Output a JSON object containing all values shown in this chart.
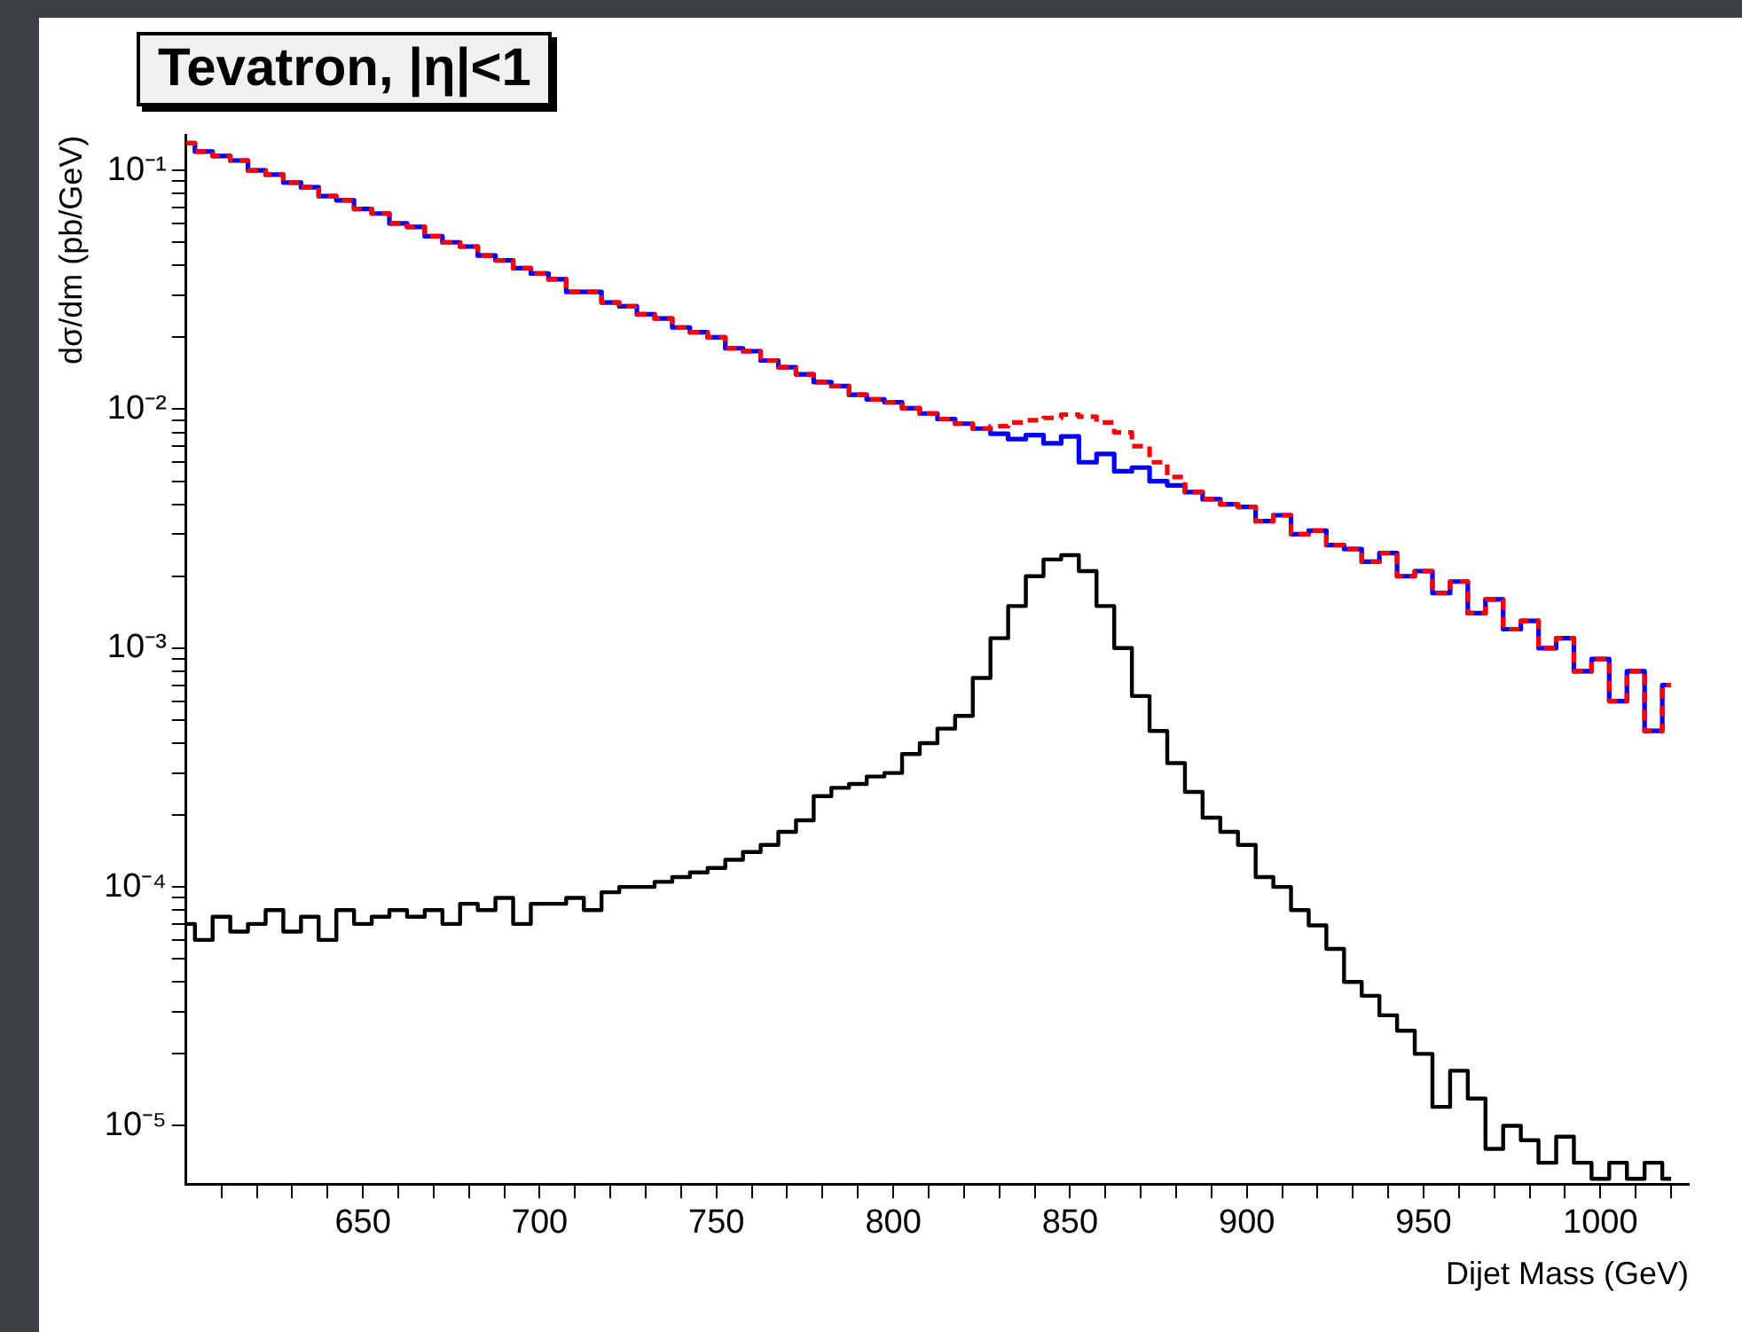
{
  "chart_data": {
    "type": "step",
    "title": "Tevatron, |η|<1",
    "xlabel": "Dijet Mass (GeV)",
    "ylabel": "dσ/dm (pb/GeV)",
    "log": "y",
    "grid": false,
    "legend": false,
    "marker": "none",
    "x": [
      600,
      605,
      610,
      615,
      620,
      625,
      630,
      635,
      640,
      645,
      650,
      655,
      660,
      665,
      670,
      675,
      680,
      685,
      690,
      695,
      700,
      705,
      710,
      715,
      720,
      725,
      730,
      735,
      740,
      745,
      750,
      755,
      760,
      765,
      770,
      775,
      780,
      785,
      790,
      795,
      800,
      805,
      810,
      815,
      820,
      825,
      830,
      835,
      840,
      845,
      850,
      855,
      860,
      865,
      870,
      875,
      880,
      885,
      890,
      895,
      900,
      905,
      910,
      915,
      920,
      925,
      930,
      935,
      940,
      945,
      950,
      955,
      960,
      965,
      970,
      975,
      980,
      985,
      990,
      995,
      1000,
      1005,
      1010,
      1015,
      1020
    ],
    "xlim": [
      600,
      1025
    ],
    "xticks": [
      {
        "value": 610,
        "label": null
      },
      {
        "value": 620,
        "label": null
      },
      {
        "value": 630,
        "label": null
      },
      {
        "value": 640,
        "label": null
      },
      650,
      {
        "value": 660,
        "label": null
      },
      {
        "value": 670,
        "label": null
      },
      {
        "value": 680,
        "label": null
      },
      {
        "value": 690,
        "label": null
      },
      700,
      {
        "value": 710,
        "label": null
      },
      {
        "value": 720,
        "label": null
      },
      {
        "value": 730,
        "label": null
      },
      {
        "value": 740,
        "label": null
      },
      750,
      {
        "value": 760,
        "label": null
      },
      {
        "value": 770,
        "label": null
      },
      {
        "value": 780,
        "label": null
      },
      {
        "value": 790,
        "label": null
      },
      800,
      {
        "value": 810,
        "label": null
      },
      {
        "value": 820,
        "label": null
      },
      {
        "value": 830,
        "label": null
      },
      {
        "value": 840,
        "label": null
      },
      850,
      {
        "value": 860,
        "label": null
      },
      {
        "value": 870,
        "label": null
      },
      {
        "value": 880,
        "label": null
      },
      {
        "value": 890,
        "label": null
      },
      900,
      {
        "value": 910,
        "label": null
      },
      {
        "value": 920,
        "label": null
      },
      {
        "value": 930,
        "label": null
      },
      {
        "value": 940,
        "label": null
      },
      950,
      {
        "value": 960,
        "label": null
      },
      {
        "value": 970,
        "label": null
      },
      {
        "value": 980,
        "label": null
      },
      {
        "value": 990,
        "label": null
      },
      1000,
      {
        "value": 1010,
        "label": null
      },
      {
        "value": 1020,
        "label": null
      }
    ],
    "ylim": [
      5.7e-06,
      0.14
    ],
    "yticks": [
      {
        "value": 1e-05,
        "label": "10⁻⁵"
      },
      {
        "value": 2e-05,
        "label": null
      },
      {
        "value": 3e-05,
        "label": null
      },
      {
        "value": 4e-05,
        "label": null
      },
      {
        "value": 5e-05,
        "label": null
      },
      {
        "value": 6e-05,
        "label": null
      },
      {
        "value": 7e-05,
        "label": null
      },
      {
        "value": 8e-05,
        "label": null
      },
      {
        "value": 9e-05,
        "label": null
      },
      {
        "value": 0.0001,
        "label": "10⁻⁴"
      },
      {
        "value": 0.0002,
        "label": null
      },
      {
        "value": 0.0003,
        "label": null
      },
      {
        "value": 0.0004,
        "label": null
      },
      {
        "value": 0.0005,
        "label": null
      },
      {
        "value": 0.0006,
        "label": null
      },
      {
        "value": 0.0007,
        "label": null
      },
      {
        "value": 0.0008,
        "label": null
      },
      {
        "value": 0.0009,
        "label": null
      },
      {
        "value": 0.001,
        "label": "10⁻³"
      },
      {
        "value": 0.002,
        "label": null
      },
      {
        "value": 0.003,
        "label": null
      },
      {
        "value": 0.004,
        "label": null
      },
      {
        "value": 0.005,
        "label": null
      },
      {
        "value": 0.006,
        "label": null
      },
      {
        "value": 0.007,
        "label": null
      },
      {
        "value": 0.008,
        "label": null
      },
      {
        "value": 0.009,
        "label": null
      },
      {
        "value": 0.01,
        "label": "10⁻²"
      },
      {
        "value": 0.02,
        "label": null
      },
      {
        "value": 0.03,
        "label": null
      },
      {
        "value": 0.04,
        "label": null
      },
      {
        "value": 0.05,
        "label": null
      },
      {
        "value": 0.06,
        "label": null
      },
      {
        "value": 0.07,
        "label": null
      },
      {
        "value": 0.08,
        "label": null
      },
      {
        "value": 0.09,
        "label": null
      },
      {
        "value": 0.1,
        "label": "10⁻¹"
      }
    ],
    "series": [
      {
        "color": "#0000ff",
        "line_style": "solid",
        "values": [
          0.13,
          0.12,
          0.115,
          0.11,
          0.1,
          0.096,
          0.089,
          0.085,
          0.078,
          0.075,
          0.069,
          0.066,
          0.06,
          0.058,
          0.053,
          0.05,
          0.048,
          0.044,
          0.042,
          0.039,
          0.037,
          0.035,
          0.031,
          0.031,
          0.028,
          0.027,
          0.025,
          0.024,
          0.022,
          0.021,
          0.02,
          0.018,
          0.0175,
          0.016,
          0.015,
          0.014,
          0.013,
          0.0125,
          0.0115,
          0.011,
          0.0107,
          0.0101,
          0.0096,
          0.0091,
          0.0087,
          0.0083,
          0.0079,
          0.0075,
          0.0078,
          0.0072,
          0.0077,
          0.006,
          0.0065,
          0.0055,
          0.0057,
          0.005,
          0.0048,
          0.0045,
          0.0042,
          0.004,
          0.0039,
          0.0034,
          0.0036,
          0.003,
          0.0031,
          0.0027,
          0.0026,
          0.0023,
          0.0025,
          0.002,
          0.0021,
          0.0017,
          0.0019,
          0.0014,
          0.0016,
          0.0012,
          0.0013,
          0.001,
          0.0011,
          0.0008,
          0.0009,
          0.0006,
          0.0008,
          0.00045,
          0.0007
        ]
      },
      {
        "color": "#ff0000",
        "line_style": "dashed",
        "values": [
          0.13,
          0.12,
          0.115,
          0.11,
          0.1,
          0.096,
          0.089,
          0.085,
          0.078,
          0.075,
          0.069,
          0.066,
          0.06,
          0.058,
          0.053,
          0.05,
          0.048,
          0.044,
          0.042,
          0.039,
          0.037,
          0.035,
          0.031,
          0.031,
          0.028,
          0.027,
          0.025,
          0.024,
          0.022,
          0.021,
          0.02,
          0.018,
          0.0175,
          0.016,
          0.015,
          0.014,
          0.013,
          0.0125,
          0.0115,
          0.011,
          0.0107,
          0.0101,
          0.0096,
          0.0091,
          0.0087,
          0.0083,
          0.0085,
          0.0088,
          0.009,
          0.0092,
          0.0095,
          0.0093,
          0.0088,
          0.008,
          0.007,
          0.006,
          0.0052,
          0.0045,
          0.0042,
          0.004,
          0.0039,
          0.0034,
          0.0036,
          0.003,
          0.0031,
          0.0027,
          0.0026,
          0.0023,
          0.0025,
          0.002,
          0.0021,
          0.0017,
          0.0019,
          0.0014,
          0.0016,
          0.0012,
          0.0013,
          0.001,
          0.0011,
          0.0008,
          0.0009,
          0.0006,
          0.0008,
          0.00045,
          0.0007
        ]
      },
      {
        "color": "#000000",
        "line_style": "solid",
        "values": [
          7e-05,
          6e-05,
          7.5e-05,
          6.5e-05,
          7e-05,
          8e-05,
          6.5e-05,
          7.5e-05,
          6e-05,
          8e-05,
          7e-05,
          7.5e-05,
          8e-05,
          7.5e-05,
          8e-05,
          7e-05,
          8.5e-05,
          8e-05,
          9e-05,
          7e-05,
          8.5e-05,
          8.5e-05,
          9e-05,
          8e-05,
          9.5e-05,
          0.0001,
          0.0001,
          0.000105,
          0.00011,
          0.000115,
          0.00012,
          0.00013,
          0.00014,
          0.00015,
          0.00017,
          0.00019,
          0.00024,
          0.00026,
          0.00027,
          0.00029,
          0.0003,
          0.00036,
          0.0004,
          0.00046,
          0.00052,
          0.00075,
          0.0011,
          0.0015,
          0.002,
          0.00235,
          0.00245,
          0.0021,
          0.0015,
          0.001,
          0.00063,
          0.00045,
          0.00033,
          0.00025,
          0.000195,
          0.00017,
          0.00015,
          0.00011,
          0.0001,
          8e-05,
          6.9e-05,
          5.5e-05,
          4e-05,
          3.5e-05,
          2.9e-05,
          2.5e-05,
          2e-05,
          1.2e-05,
          1.7e-05,
          1.3e-05,
          8e-06,
          1e-05,
          8.7e-06,
          7e-06,
          9e-06,
          7e-06,
          6e-06,
          7e-06,
          6e-06,
          7e-06,
          6e-06
        ]
      }
    ]
  }
}
